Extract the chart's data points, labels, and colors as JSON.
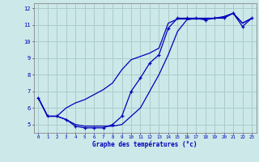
{
  "xlabel": "Graphe des températures (°c)",
  "background_color": "#cce8e8",
  "grid_color": "#aacccc",
  "line_color": "#0000bb",
  "xlim": [
    -0.5,
    23.5
  ],
  "ylim": [
    4.5,
    12.3
  ],
  "xticks": [
    0,
    1,
    2,
    3,
    4,
    5,
    6,
    7,
    8,
    9,
    10,
    11,
    12,
    13,
    14,
    15,
    16,
    17,
    18,
    19,
    20,
    21,
    22,
    23
  ],
  "yticks": [
    5,
    6,
    7,
    8,
    9,
    10,
    11,
    12
  ],
  "hours": [
    0,
    1,
    2,
    3,
    4,
    5,
    6,
    7,
    8,
    9,
    10,
    11,
    12,
    13,
    14,
    15,
    16,
    17,
    18,
    19,
    20,
    21,
    22,
    23
  ],
  "line_marked_y": [
    6.6,
    5.5,
    5.5,
    5.3,
    4.9,
    4.8,
    4.8,
    4.8,
    5.0,
    5.5,
    7.0,
    7.8,
    8.7,
    9.2,
    10.8,
    11.4,
    11.4,
    11.4,
    11.3,
    11.4,
    11.4,
    11.7,
    10.9,
    11.4
  ],
  "line_upper_y": [
    6.6,
    5.5,
    5.5,
    6.0,
    6.3,
    6.5,
    6.8,
    7.1,
    7.5,
    8.3,
    8.9,
    9.1,
    9.3,
    9.6,
    11.1,
    11.35,
    11.35,
    11.35,
    11.35,
    11.4,
    11.45,
    11.7,
    11.1,
    11.4
  ],
  "line_lower_y": [
    6.6,
    5.5,
    5.5,
    5.3,
    5.0,
    4.9,
    4.9,
    4.9,
    4.9,
    5.0,
    5.5,
    6.0,
    7.0,
    8.0,
    9.2,
    10.6,
    11.3,
    11.4,
    11.4,
    11.4,
    11.5,
    11.7,
    11.1,
    11.4
  ]
}
